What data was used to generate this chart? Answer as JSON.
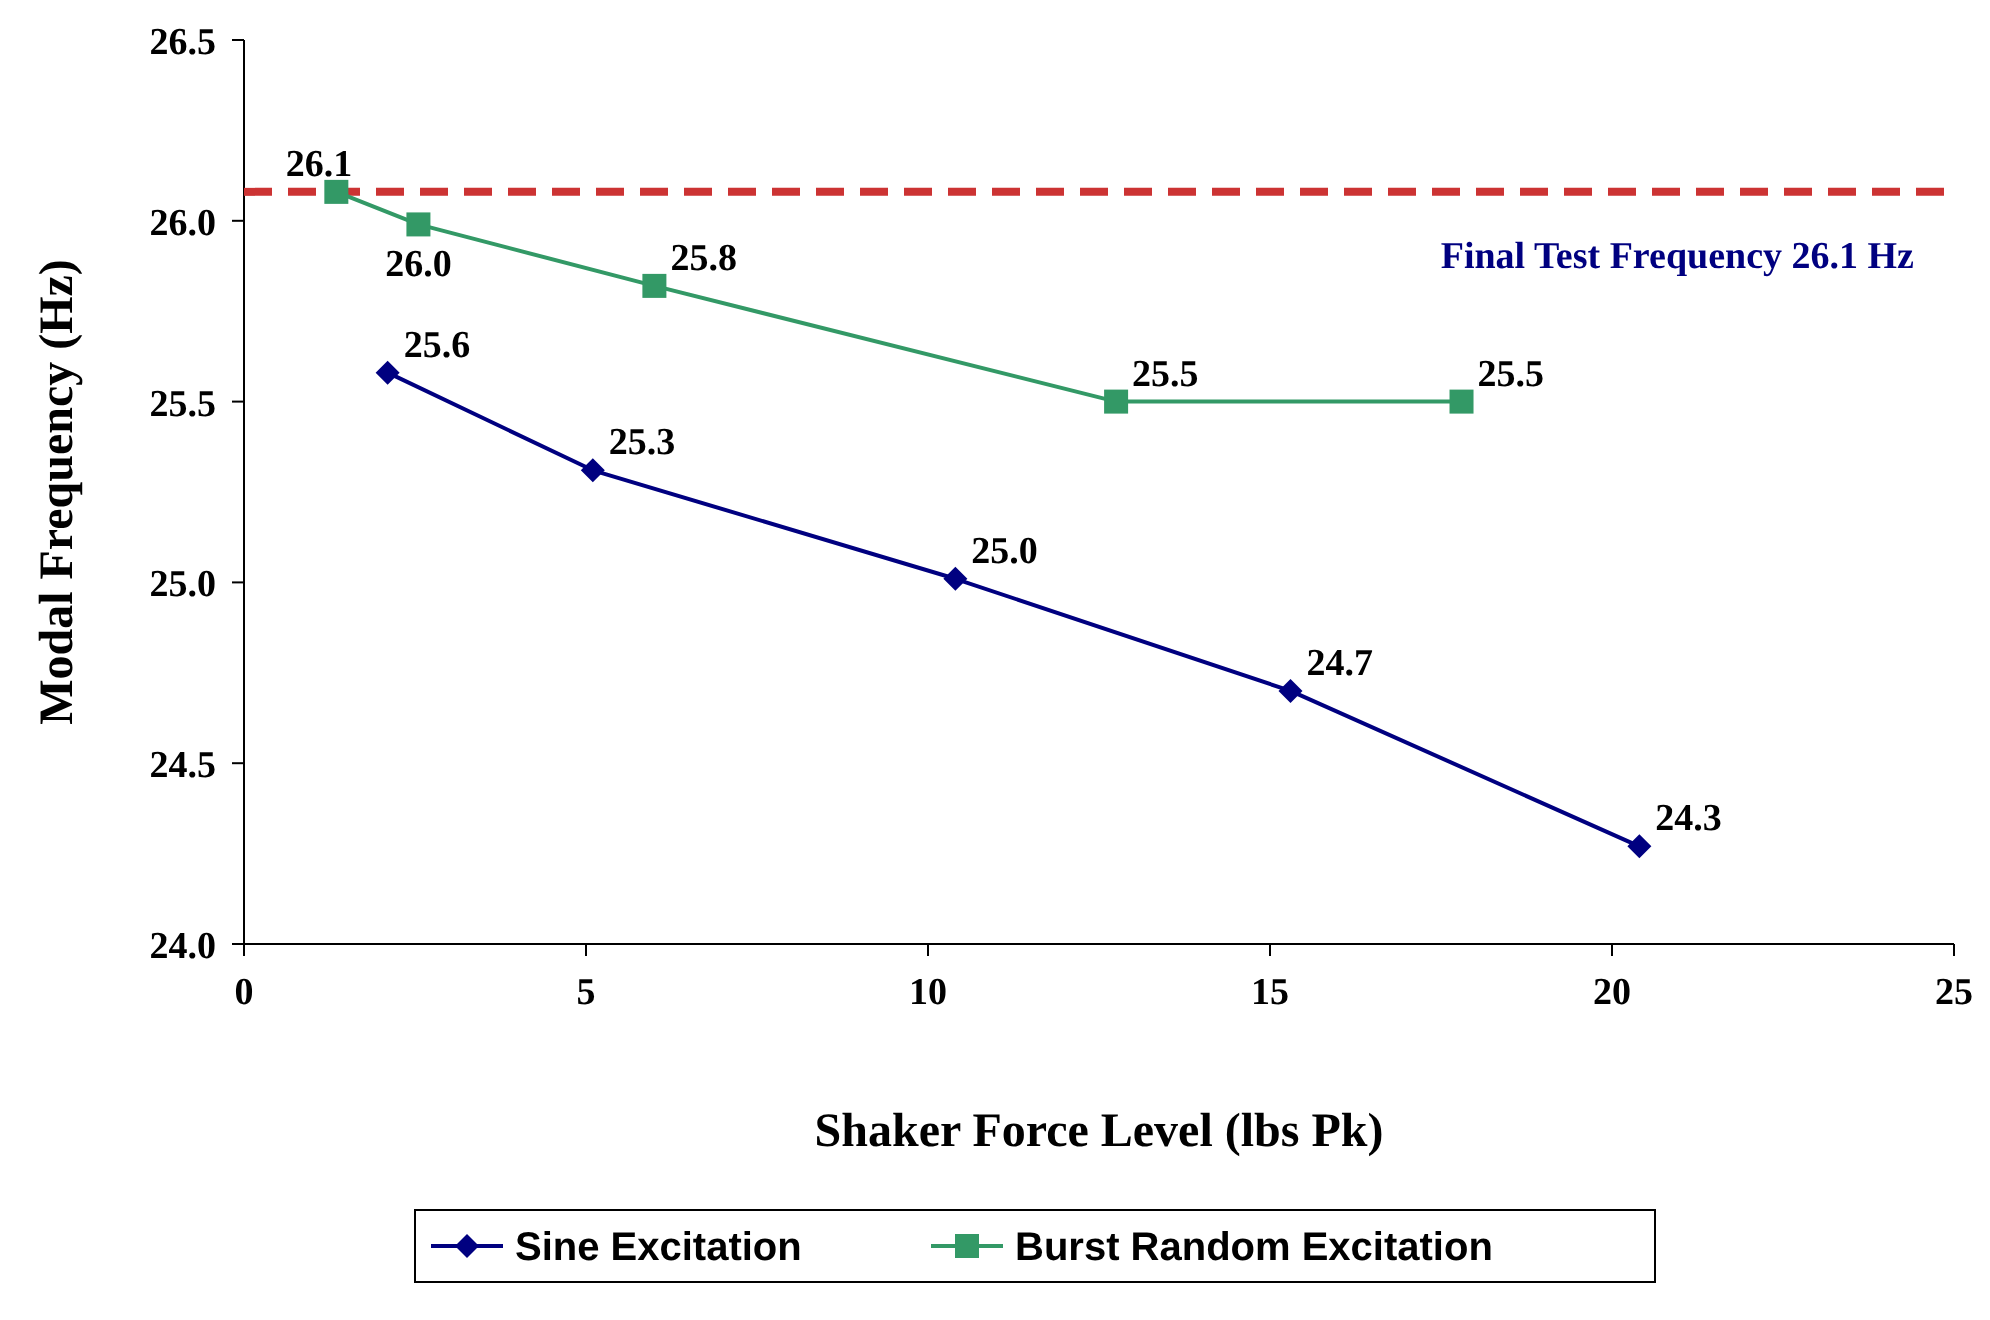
{
  "chart_data": {
    "type": "line",
    "xlabel": "Shaker Force Level (lbs Pk)",
    "ylabel": "Modal Frequency (Hz)",
    "xlim": [
      0,
      25
    ],
    "xticks": [
      0,
      5,
      10,
      15,
      20,
      25
    ],
    "ylim": [
      24.0,
      26.5
    ],
    "yticks": [
      {
        "value": 24.0,
        "label": "24.0"
      },
      {
        "value": 24.5,
        "label": "24.5"
      },
      {
        "value": 25.0,
        "label": "25.0"
      },
      {
        "value": 25.5,
        "label": "25.5"
      },
      {
        "value": 26.0,
        "label": "26.0"
      },
      {
        "value": 26.5,
        "label": "26.5"
      }
    ],
    "grid": false,
    "legend": "bottom",
    "series": [
      {
        "name": "Sine Excitation",
        "color": "#000080",
        "marker": "diamond",
        "x": [
          2.1,
          5.1,
          10.4,
          15.3,
          20.4
        ],
        "values": [
          25.58,
          25.31,
          25.01,
          24.7,
          24.27
        ],
        "value_labels": [
          "25.6",
          "25.3",
          "25.0",
          "24.7",
          "24.3"
        ]
      },
      {
        "name": "Burst Random Excitation",
        "color": "#339966",
        "marker": "square",
        "x": [
          1.35,
          2.55,
          6.0,
          12.75,
          17.8
        ],
        "values": [
          26.08,
          25.99,
          25.82,
          25.5,
          25.5
        ],
        "value_labels": [
          "26.1",
          "26.0",
          "25.8",
          "25.5",
          "25.5"
        ]
      }
    ],
    "ref_lines": [
      {
        "axis": "y",
        "value": 26.08,
        "label": "Final Test Frequency 26.1 Hz",
        "color": "#cc3333",
        "line_style": "dashed"
      }
    ]
  }
}
